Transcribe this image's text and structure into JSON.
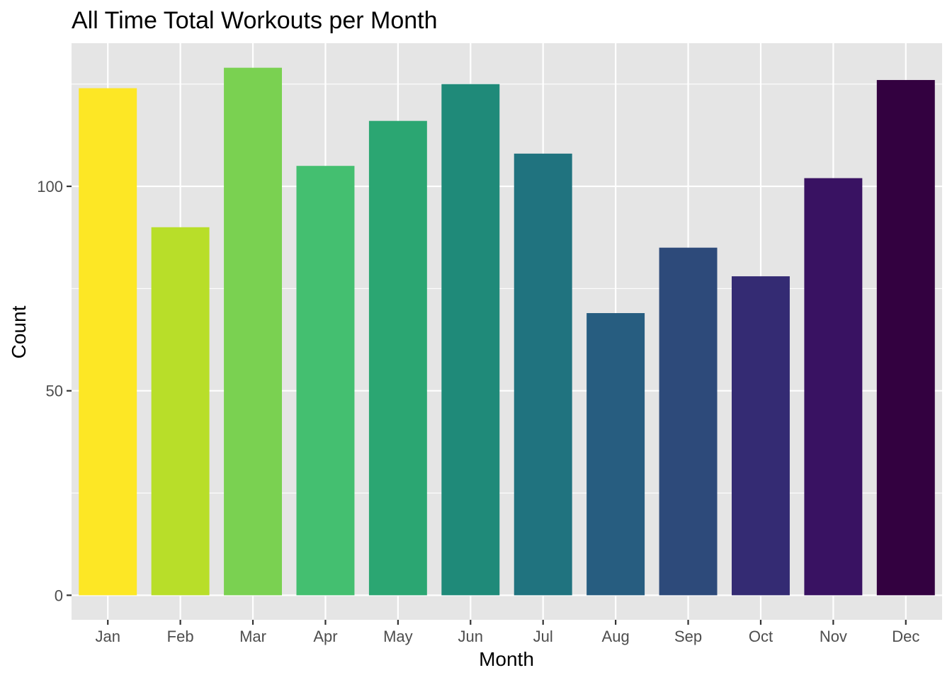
{
  "chart_data": {
    "type": "bar",
    "title": "All Time Total Workouts per Month",
    "xlabel": "Month",
    "ylabel": "Count",
    "categories": [
      "Jan",
      "Feb",
      "Mar",
      "Apr",
      "May",
      "Jun",
      "Jul",
      "Aug",
      "Sep",
      "Oct",
      "Nov",
      "Dec"
    ],
    "values": [
      124,
      90,
      129,
      105,
      116,
      125,
      108,
      69,
      85,
      78,
      102,
      126
    ],
    "colors": [
      "#FDE725",
      "#B8DE29",
      "#7AD151",
      "#44BF70",
      "#2BA672",
      "#1F8A79",
      "#20737F",
      "#275D80",
      "#2D4A7A",
      "#342B73",
      "#391262",
      "#330140"
    ],
    "ylim": [
      -6,
      135
    ],
    "y_ticks": [
      0,
      50,
      100
    ],
    "y_tick_labels": [
      "0",
      "50",
      "100"
    ],
    "grid": true,
    "legend": "none",
    "panel_background": "#E5E5E5",
    "grid_color": "#FFFFFF"
  }
}
